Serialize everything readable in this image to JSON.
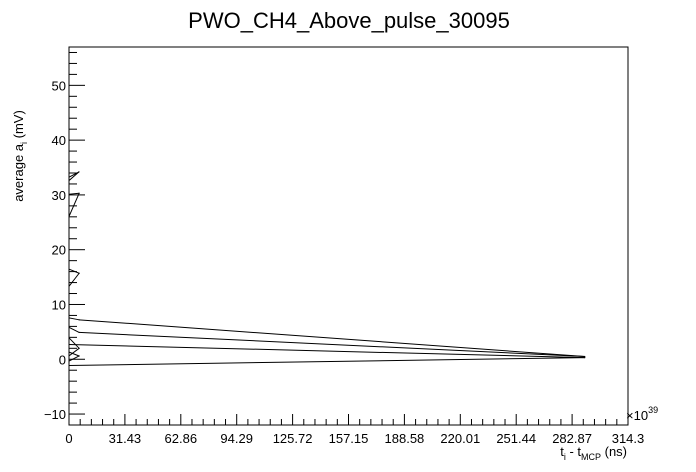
{
  "chart_data": {
    "type": "line",
    "title": "PWO_CH4_Above_pulse_30095",
    "xlabel": {
      "main": "t",
      "sub1": "i",
      "mid": " - t",
      "sub2": "MCP",
      "unit": " (ns)"
    },
    "ylabel": {
      "main": "average a",
      "sub": "i",
      "unit": "  (mV)"
    },
    "x_multiplier": {
      "base": "×10",
      "exp": "39"
    },
    "xlim": [
      0,
      314.3
    ],
    "ylim": [
      -12,
      57
    ],
    "x_ticks": [
      "0",
      "31.43",
      "62.86",
      "94.29",
      "125.72",
      "157.15",
      "188.58",
      "220.01",
      "251.44",
      "282.87",
      "314.3"
    ],
    "y_ticks": [
      "−10",
      "0",
      "10",
      "20",
      "30",
      "40",
      "50"
    ],
    "y_tick_values": [
      -10,
      0,
      10,
      20,
      30,
      40,
      50
    ],
    "grid": false,
    "series": [
      {
        "x": [
          -12,
          5.6,
          -10,
          5.7,
          -11,
          5.7,
          -12,
          5.7,
          290,
          5.7,
          -11,
          5.7,
          -12,
          5.7,
          -12,
          290,
          -12
        ],
        "y": [
          31.2,
          34.2,
          29.8,
          30.3,
          17.9,
          15.7,
          8.3,
          7.2,
          0.5,
          4.9,
          7.6,
          2.0,
          -2.3,
          0.6,
          2.8,
          0.3,
          -1.2
        ]
      }
    ]
  }
}
